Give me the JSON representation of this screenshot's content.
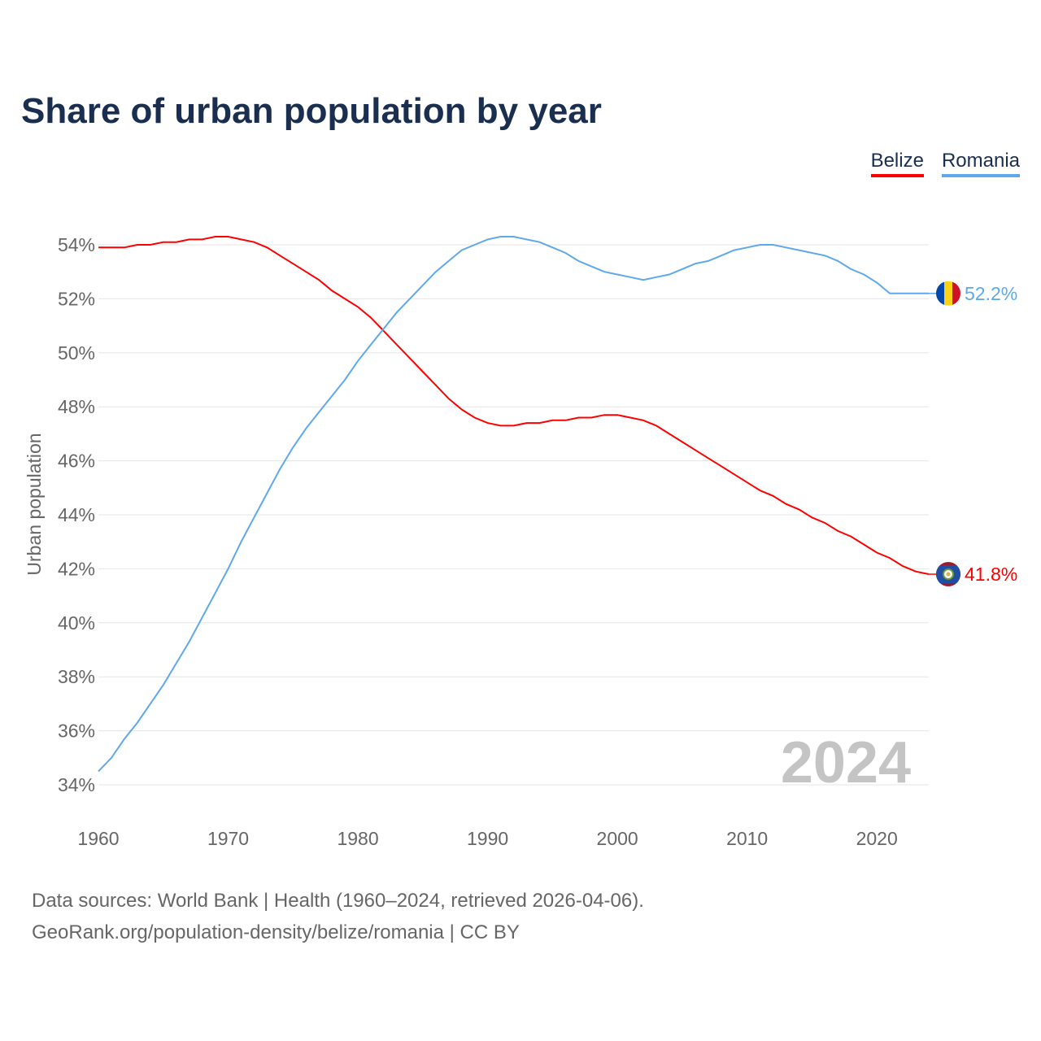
{
  "chart_data": {
    "type": "line",
    "title": "Share of urban population by year",
    "ylabel": "Urban population",
    "xlabel": "",
    "ylim": [
      34,
      54
    ],
    "xlim": [
      1960,
      2024
    ],
    "yticks": [
      "34%",
      "36%",
      "38%",
      "40%",
      "42%",
      "44%",
      "46%",
      "48%",
      "50%",
      "52%",
      "54%"
    ],
    "ytick_values": [
      34,
      36,
      38,
      40,
      42,
      44,
      46,
      48,
      50,
      52,
      54
    ],
    "xticks": [
      "1960",
      "1970",
      "1980",
      "1990",
      "2000",
      "2010",
      "2020"
    ],
    "xtick_values": [
      1960,
      1970,
      1980,
      1990,
      2000,
      2010,
      2020
    ],
    "grid": true,
    "legend_position": "top-right",
    "year_watermark": "2024",
    "x_start": 1960,
    "series": [
      {
        "name": "Belize",
        "color": "#ff0000",
        "end_label": "41.8%",
        "values": [
          53.9,
          53.9,
          53.9,
          54.0,
          54.0,
          54.1,
          54.1,
          54.2,
          54.2,
          54.3,
          54.3,
          54.2,
          54.1,
          53.9,
          53.6,
          53.3,
          53.0,
          52.7,
          52.3,
          52.0,
          51.7,
          51.3,
          50.8,
          50.3,
          49.8,
          49.3,
          48.8,
          48.3,
          47.9,
          47.6,
          47.4,
          47.3,
          47.3,
          47.4,
          47.4,
          47.5,
          47.5,
          47.6,
          47.6,
          47.7,
          47.7,
          47.6,
          47.5,
          47.3,
          47.0,
          46.7,
          46.4,
          46.1,
          45.8,
          45.5,
          45.2,
          44.9,
          44.7,
          44.4,
          44.2,
          43.9,
          43.7,
          43.4,
          43.2,
          42.9,
          42.6,
          42.4,
          42.1,
          41.9,
          41.8
        ]
      },
      {
        "name": "Romania",
        "color": "#5ea8ec",
        "end_label": "52.2%",
        "values": [
          34.5,
          35.0,
          35.7,
          36.3,
          37.0,
          37.7,
          38.5,
          39.3,
          40.2,
          41.1,
          42.0,
          43.0,
          43.9,
          44.8,
          45.7,
          46.5,
          47.2,
          47.8,
          48.4,
          49.0,
          49.7,
          50.3,
          50.9,
          51.5,
          52.0,
          52.5,
          53.0,
          53.4,
          53.8,
          54.0,
          54.2,
          54.3,
          54.3,
          54.2,
          54.1,
          53.9,
          53.7,
          53.4,
          53.2,
          53.0,
          52.9,
          52.8,
          52.7,
          52.8,
          52.9,
          53.1,
          53.3,
          53.4,
          53.6,
          53.8,
          53.9,
          54.0,
          54.0,
          53.9,
          53.8,
          53.7,
          53.6,
          53.4,
          53.1,
          52.9,
          52.6,
          52.2,
          52.2,
          52.2,
          52.2
        ]
      }
    ]
  },
  "legend": {
    "belize": "Belize",
    "romania": "Romania"
  },
  "footer": {
    "line1": "Data sources: World Bank | Health (1960–2024, retrieved 2026-04-06).",
    "line2": "GeoRank.org/population-density/belize/romania | CC BY"
  }
}
